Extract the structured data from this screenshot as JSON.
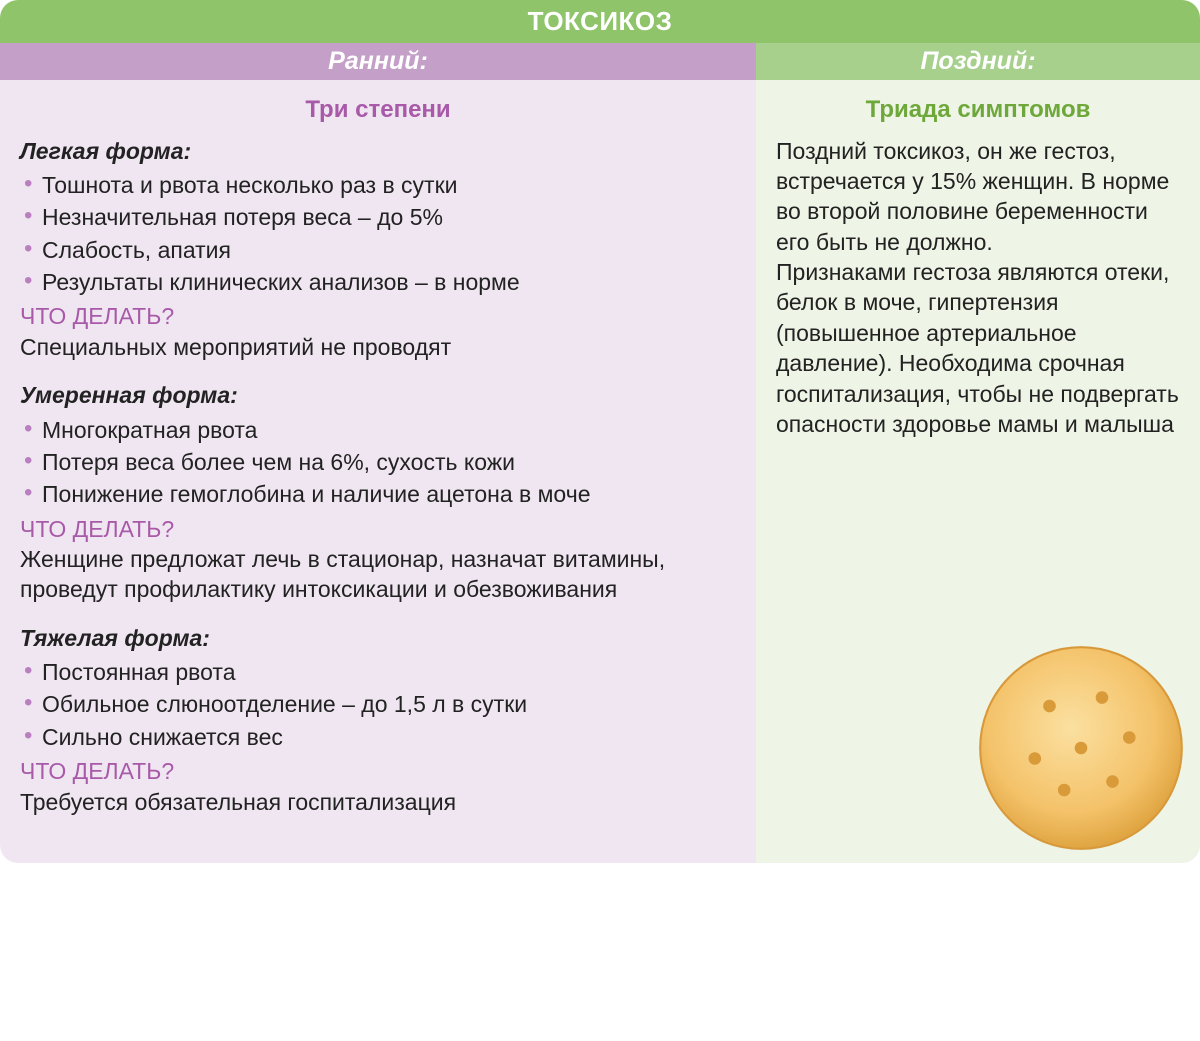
{
  "colors": {
    "title_bg": "#8fc46b",
    "left_header_bg": "#c49fc8",
    "right_header_bg": "#a7d08c",
    "left_body_bg": "#f0e6f2",
    "right_body_bg": "#eef4e6",
    "left_subtitle": "#a85aa8",
    "right_subtitle": "#6fa83a",
    "bullet": "#b97fbf",
    "action_q": "#a85aa8",
    "body_text": "#2a2a2a",
    "cracker_fill": "#f4c269",
    "cracker_edge": "#e0a542",
    "cracker_hole": "#d99a3a"
  },
  "title": "ТОКСИКОЗ",
  "left": {
    "header": "Ранний:",
    "subtitle": "Три степени",
    "sections": [
      {
        "label": "Легкая форма:",
        "bullets": [
          "Тошнота и рвота несколько раз в сутки",
          "Незначительная потеря веса – до 5%",
          "Слабость, апатия",
          "Результаты клинических анализов – в норме"
        ],
        "action_q": "ЧТО ДЕЛАТЬ?",
        "action_a": "Специальных мероприятий не проводят"
      },
      {
        "label": "Умеренная форма:",
        "bullets": [
          "Многократная рвота",
          "Потеря веса более чем на 6%, сухость кожи",
          "Понижение гемоглобина и наличие ацетона в моче"
        ],
        "action_q": "ЧТО ДЕЛАТЬ?",
        "action_a": "Женщине предложат лечь в стационар, назначат витамины, проведут профилактику интоксикации и обезвоживания"
      },
      {
        "label": "Тяжелая форма:",
        "bullets": [
          "Постоянная рвота",
          "Обильное слюноотделение – до 1,5 л в сутки",
          "Сильно снижается вес"
        ],
        "action_q": "ЧТО ДЕЛАТЬ?",
        "action_a": "Требуется обязательная госпитализация"
      }
    ]
  },
  "right": {
    "header": "Поздний:",
    "subtitle": "Триада симптомов",
    "paragraph": "Поздний токсикоз, он же гестоз, встречается у 15% женщин. В норме во второй половине беременности его быть не должно.\nПризнаками гестоза являются отеки, белок в моче, гипертензия (повышенное артериальное давление). Необходима срочная госпитализация, чтобы не подвергать опасности здоровье мамы и малыша"
  }
}
